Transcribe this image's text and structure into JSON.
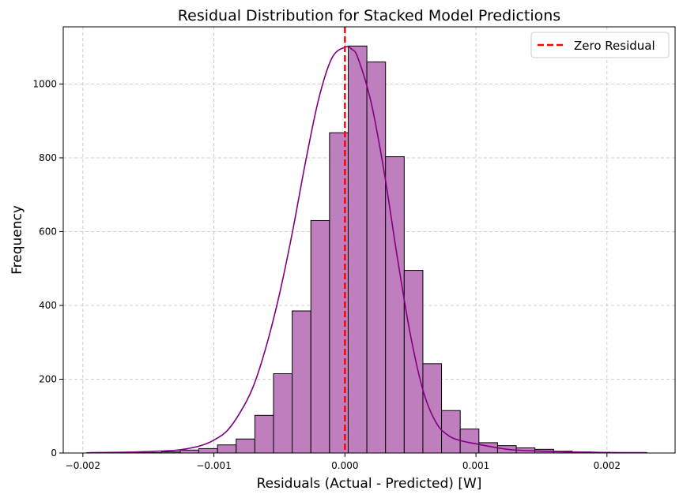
{
  "chart_data": {
    "type": "bar",
    "title": "Residual Distribution for Stacked Model Predictions",
    "xlabel": "Residuals (Actual - Predicted) [W]",
    "ylabel": "Frequency",
    "xlim": [
      -0.00215,
      0.00252
    ],
    "ylim": [
      0,
      1155
    ],
    "x_ticks": [
      -0.002,
      -0.001,
      0.0,
      0.001,
      0.002
    ],
    "x_tick_labels": [
      "−0.002",
      "−0.001",
      "0.000",
      "0.001",
      "0.002"
    ],
    "y_ticks": [
      0,
      200,
      400,
      600,
      800,
      1000
    ],
    "y_tick_labels": [
      "0",
      "200",
      "400",
      "600",
      "800",
      "1000"
    ],
    "grid": true,
    "bin_start": -0.00197,
    "bin_width": 0.0001425,
    "bin_counts": [
      1,
      0,
      1,
      1,
      3,
      8,
      12,
      22,
      38,
      102,
      215,
      385,
      630,
      868,
      1103,
      1060,
      803,
      495,
      242,
      115,
      65,
      28,
      20,
      14,
      10,
      5,
      3,
      2,
      1,
      1
    ],
    "bar_fill": "#bf7fbf",
    "bar_edge": "#000000",
    "kde": {
      "color": "#800080",
      "x": [
        -0.00195,
        -0.0017,
        -0.0015,
        -0.0013,
        -0.0012,
        -0.0011,
        -0.001,
        -0.0009,
        -0.0008,
        -0.0007,
        -0.0006,
        -0.0005,
        -0.0004,
        -0.0003,
        -0.0002,
        -0.0001,
        0.0,
        5e-05,
        0.0001,
        0.0002,
        0.0003,
        0.0004,
        0.0005,
        0.0006,
        0.0007,
        0.0008,
        0.0009,
        0.001,
        0.0011,
        0.0012,
        0.0013,
        0.0015,
        0.0017,
        0.0019,
        0.0021,
        0.0023
      ],
      "y": [
        1,
        2,
        4,
        7,
        12,
        20,
        35,
        60,
        110,
        180,
        290,
        430,
        600,
        790,
        960,
        1070,
        1100,
        1095,
        1070,
        950,
        760,
        530,
        320,
        165,
        80,
        45,
        32,
        25,
        18,
        12,
        8,
        5,
        3,
        2,
        1,
        1
      ]
    },
    "reference_line": {
      "x": 0.0,
      "label": "Zero Residual",
      "color": "#ff0000",
      "style": "dashed"
    },
    "legend_position": "top-right"
  }
}
